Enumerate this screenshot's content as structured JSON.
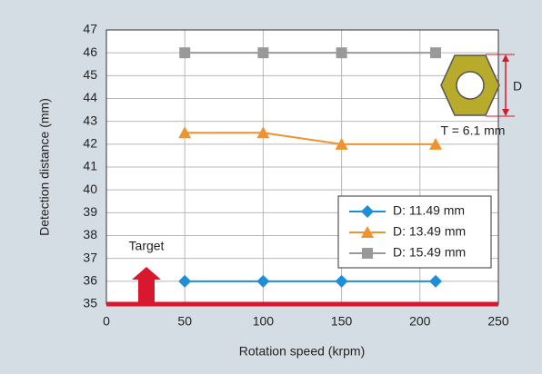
{
  "chart_data": {
    "type": "line",
    "x_label": "Rotation speed (krpm)",
    "y_label": "Detection distance (mm)",
    "x": [
      50,
      100,
      150,
      210
    ],
    "series": [
      {
        "name": "D: 11.49 mm",
        "color": "#1e8fd6",
        "marker": "diamond",
        "values": [
          36,
          36,
          36,
          36
        ]
      },
      {
        "name": "D: 13.49 mm",
        "color": "#f0922d",
        "marker": "triangle",
        "values": [
          42.5,
          42.5,
          42.0,
          42.0
        ]
      },
      {
        "name": "D: 15.49 mm",
        "color": "#999999",
        "marker": "square",
        "values": [
          46,
          46,
          46,
          46
        ]
      }
    ],
    "xlim": [
      0,
      250
    ],
    "xticks": [
      0,
      50,
      100,
      150,
      200,
      250
    ],
    "ylim": [
      35,
      47
    ],
    "yticks": [
      35,
      36,
      37,
      38,
      39,
      40,
      41,
      42,
      43,
      44,
      45,
      46,
      47
    ],
    "grid": true,
    "legend": "lower right",
    "annotations": {
      "target": "Target",
      "thickness": "T = 6.1 mm",
      "dimension": "D"
    }
  }
}
